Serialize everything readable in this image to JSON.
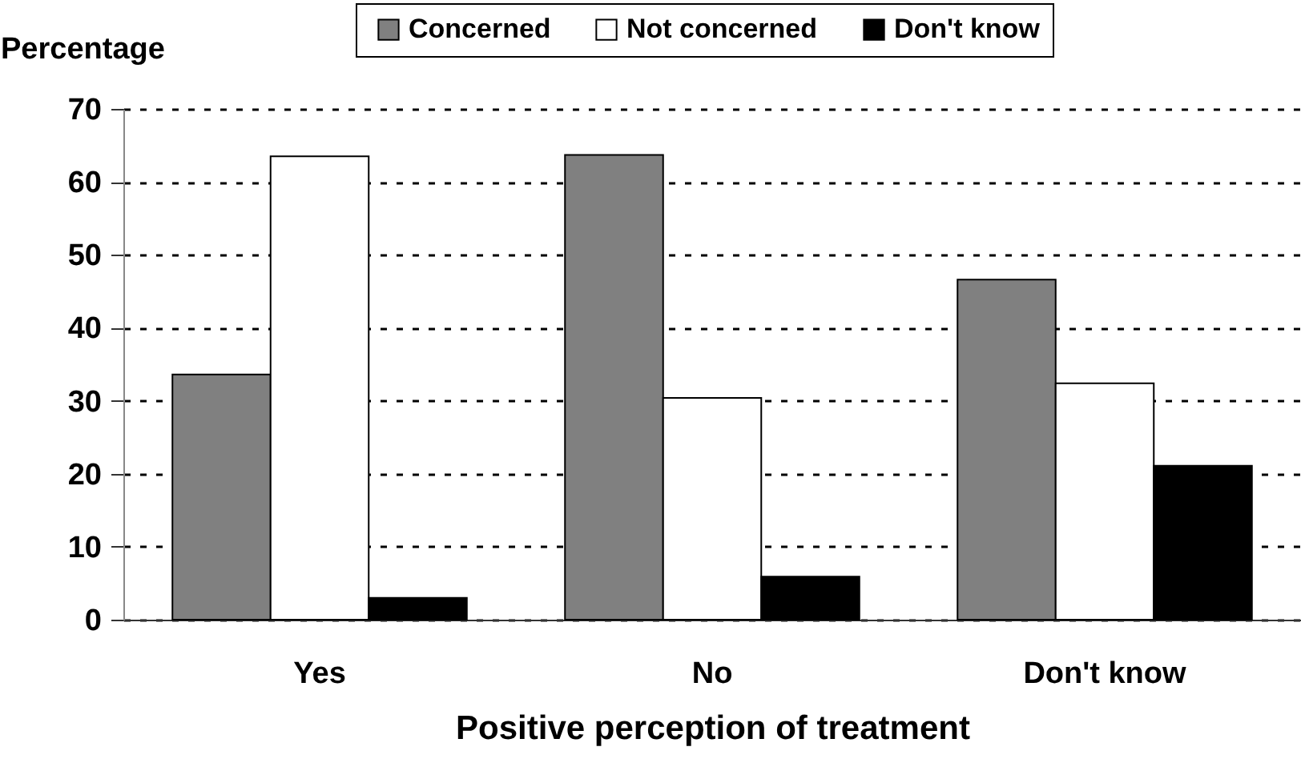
{
  "chart_data": {
    "type": "bar",
    "xlabel": "Positive perception of treatment",
    "ylabel": "Percentage",
    "categories": [
      "Yes",
      "No",
      "Don't know"
    ],
    "series": [
      {
        "name": "Concerned",
        "color": "#808080",
        "values": [
          33.6,
          63.7,
          46.6
        ]
      },
      {
        "name": "Not concerned",
        "color": "#ffffff",
        "values": [
          63.5,
          30.4,
          32.4
        ]
      },
      {
        "name": "Don't know",
        "color": "#000000",
        "values": [
          3.0,
          5.9,
          21.1
        ]
      }
    ],
    "ylim": [
      0,
      70
    ],
    "yticks": [
      0,
      10,
      20,
      30,
      40,
      50,
      60,
      70
    ],
    "grid": "y",
    "legend": "top right"
  }
}
